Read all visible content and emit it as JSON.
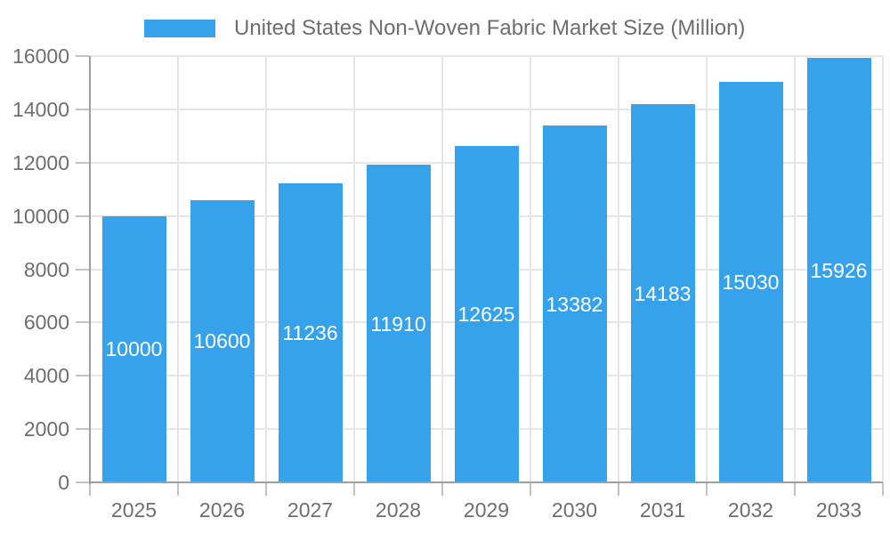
{
  "chart_data": {
    "type": "bar",
    "title": "United States Non-Woven Fabric Market Size (Million)",
    "legend": {
      "position": "top",
      "entries": [
        "United States Non-Woven Fabric Market Size (Million)"
      ]
    },
    "categories": [
      "2025",
      "2026",
      "2027",
      "2028",
      "2029",
      "2030",
      "2031",
      "2032",
      "2033"
    ],
    "series": [
      {
        "name": "United States Non-Woven Fabric Market Size (Million)",
        "values": [
          10000,
          10600,
          11236,
          11910,
          12625,
          13382,
          14183,
          15030,
          15926
        ]
      }
    ],
    "bar_value_labels": [
      "10000",
      "10600",
      "11236",
      "11910",
      "12625",
      "13382",
      "14183",
      "15030",
      "15926"
    ],
    "xlabel": "",
    "ylabel": "",
    "ylim": [
      0,
      16000
    ],
    "ytick_step": 2000,
    "yticks": [
      0,
      2000,
      4000,
      6000,
      8000,
      10000,
      12000,
      14000,
      16000
    ],
    "ytick_labels": [
      "0",
      "2000",
      "4000",
      "6000",
      "8000",
      "10000",
      "12000",
      "14000",
      "16000"
    ],
    "grid": true,
    "colors": {
      "bar": "#36A2EB",
      "grid": "#E6E6E6",
      "axis": "#9E9E9E",
      "tick": "#C2C2C2",
      "text": "#6E6E6E",
      "bar_label": "#FFFFFF",
      "background": "#FFFFFF"
    }
  }
}
